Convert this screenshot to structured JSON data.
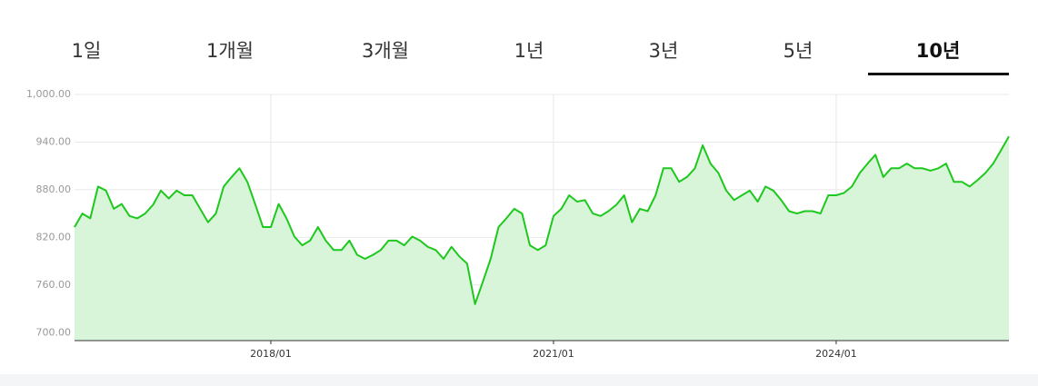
{
  "tabs": [
    "1일",
    "1개월",
    "3개월",
    "1년",
    "3년",
    "5년",
    "10년"
  ],
  "chart_data": {
    "type": "line",
    "x": [
      "2015/12",
      "2016/01",
      "2016/02",
      "2016/03",
      "2016/04",
      "2016/05",
      "2016/06",
      "2016/07",
      "2016/08",
      "2016/09",
      "2016/10",
      "2016/11",
      "2016/12",
      "2017/01",
      "2017/02",
      "2017/03",
      "2017/04",
      "2017/05",
      "2017/06",
      "2017/07",
      "2017/08",
      "2017/09",
      "2017/10",
      "2017/11",
      "2017/12",
      "2018/01",
      "2018/02",
      "2018/03",
      "2018/04",
      "2018/05",
      "2018/06",
      "2018/07",
      "2018/08",
      "2018/09",
      "2018/10",
      "2018/11",
      "2018/12",
      "2019/01",
      "2019/02",
      "2019/03",
      "2019/04",
      "2019/05",
      "2019/06",
      "2019/07",
      "2019/08",
      "2019/09",
      "2019/10",
      "2019/11",
      "2019/12",
      "2020/01",
      "2020/02",
      "2020/03",
      "2020/04",
      "2020/05",
      "2020/06",
      "2020/07",
      "2020/08",
      "2020/09",
      "2020/10",
      "2020/11",
      "2020/12",
      "2021/01",
      "2021/02",
      "2021/03",
      "2021/04",
      "2021/05",
      "2021/06",
      "2021/07",
      "2021/08",
      "2021/09",
      "2021/10",
      "2021/11",
      "2021/12",
      "2022/01",
      "2022/02",
      "2022/03",
      "2022/04",
      "2022/05",
      "2022/06",
      "2022/07",
      "2022/08",
      "2022/09",
      "2022/10",
      "2022/11",
      "2022/12",
      "2023/01",
      "2023/02",
      "2023/03",
      "2023/04",
      "2023/05",
      "2023/06",
      "2023/07",
      "2023/08",
      "2023/09",
      "2023/10",
      "2023/11",
      "2023/12",
      "2024/01",
      "2024/02",
      "2024/03",
      "2024/04",
      "2024/05",
      "2024/06",
      "2024/07",
      "2024/08",
      "2024/09",
      "2024/10",
      "2024/11",
      "2024/12",
      "2025/01",
      "2025/02",
      "2025/03",
      "2025/04",
      "2025/05",
      "2025/06",
      "2025/07",
      "2025/08",
      "2025/09",
      "2025/10",
      "2025/11"
    ],
    "values": [
      833,
      850,
      844,
      884,
      879,
      856,
      862,
      847,
      844,
      850,
      861,
      879,
      869,
      879,
      873,
      873,
      856,
      839,
      850,
      884,
      896,
      907,
      890,
      862,
      833,
      833,
      862,
      844,
      821,
      810,
      816,
      833,
      816,
      804,
      804,
      816,
      798,
      793,
      798,
      804,
      816,
      816,
      810,
      821,
      816,
      808,
      804,
      793,
      808,
      796,
      787,
      736,
      764,
      793,
      833,
      844,
      856,
      850,
      810,
      804,
      810,
      847,
      856,
      873,
      865,
      867,
      850,
      847,
      853,
      861,
      873,
      839,
      856,
      853,
      873,
      907,
      907,
      890,
      896,
      907,
      936,
      913,
      901,
      879,
      867,
      873,
      879,
      865,
      884,
      879,
      867,
      853,
      850,
      853,
      853,
      850,
      873,
      873,
      876,
      884,
      901,
      913,
      924,
      896,
      907,
      907,
      913,
      907,
      907,
      904,
      907,
      913,
      890,
      890,
      884,
      892,
      901,
      913,
      930,
      947
    ],
    "color": "#1ec81e",
    "fill": "#d9f5d9",
    "xlim": [
      "2015/12",
      "2025/11"
    ],
    "xticks": [
      "2018/01",
      "2021/01",
      "2024/01"
    ],
    "ylim": [
      690,
      1000
    ],
    "yticks": [
      {
        "value": 700,
        "label": "700.00"
      },
      {
        "value": 760,
        "label": "760.00"
      },
      {
        "value": 820,
        "label": "820.00"
      },
      {
        "value": 880,
        "label": "880.00"
      },
      {
        "value": 940,
        "label": "940.00"
      },
      {
        "value": 1000,
        "label": "1,000.00"
      }
    ],
    "grid": true
  }
}
